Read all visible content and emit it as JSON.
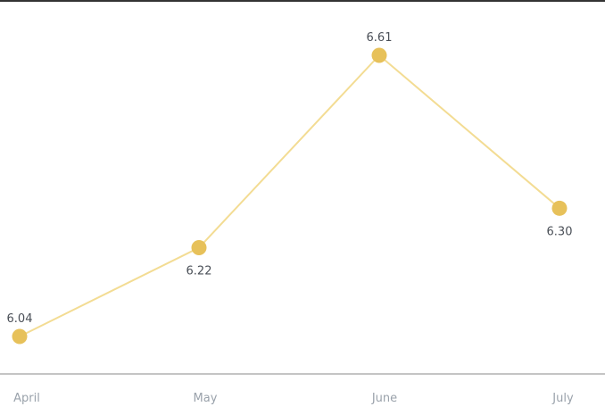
{
  "chart_data": {
    "type": "line",
    "categories": [
      "April",
      "May",
      "June",
      "July"
    ],
    "series": [
      {
        "values": [
          6.04,
          6.22,
          6.61,
          6.3
        ]
      }
    ],
    "data_labels": [
      "6.04",
      "6.22",
      "6.61",
      "6.30"
    ],
    "title": "",
    "xlabel": "",
    "ylabel": "",
    "ylim": [
      6.0,
      6.7
    ],
    "grid": false,
    "legend": "none",
    "colors": {
      "line": "#f3dc93",
      "marker": "#e7c15a",
      "axis": "#8a8a8a",
      "top_border": "#333333"
    }
  }
}
